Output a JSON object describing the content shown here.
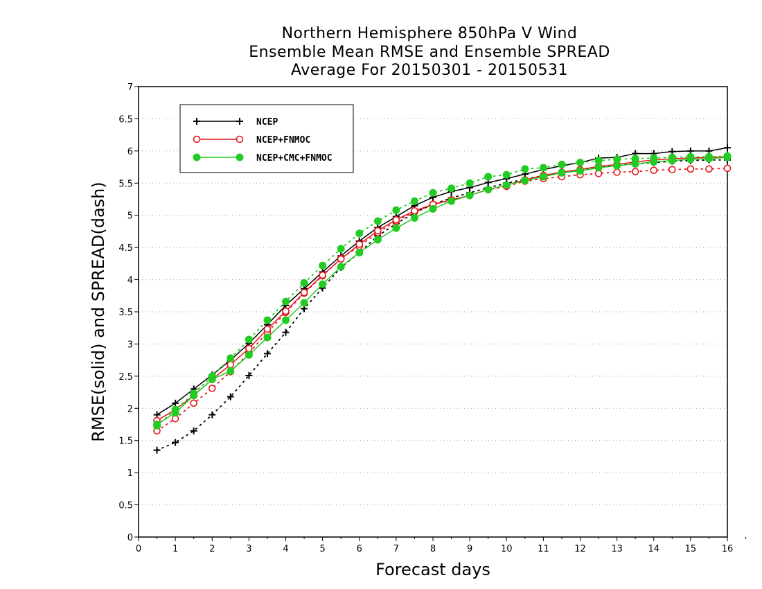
{
  "chart_data": {
    "type": "line",
    "title": [
      "Northern Hemisphere 850hPa V Wind",
      "Ensemble Mean RMSE and Ensemble SPREAD",
      "Average For 20150301 - 20150531"
    ],
    "xlabel": "Forecast days",
    "ylabel": "RMSE(solid) and SPREAD(dash)",
    "xlim": [
      0,
      16
    ],
    "ylim": [
      0,
      7
    ],
    "x_ticks": [
      "0",
      "1",
      "2",
      "3",
      "4",
      "5",
      "6",
      "7",
      "8",
      "9",
      "10",
      "11",
      "12",
      "13",
      "14",
      "15",
      "16"
    ],
    "y_ticks": [
      "0",
      "0.5",
      "1",
      "1.5",
      "2",
      "2.5",
      "3",
      "3.5",
      "4",
      "4.5",
      "5",
      "5.5",
      "6",
      "6.5",
      "7"
    ],
    "grid": "horizontal dotted",
    "legend_position": "top-left",
    "x": [
      0.5,
      1,
      1.5,
      2,
      2.5,
      3,
      3.5,
      4,
      4.5,
      5,
      5.5,
      6,
      6.5,
      7,
      7.5,
      8,
      8.5,
      9,
      9.5,
      10,
      10.5,
      11,
      11.5,
      12,
      12.5,
      13,
      13.5,
      14,
      14.5,
      15,
      15.5,
      16
    ],
    "series": [
      {
        "name": "NCEP",
        "color": "#000000",
        "marker": "plus",
        "rmse": [
          1.9,
          2.08,
          2.3,
          2.52,
          2.75,
          3.01,
          3.3,
          3.6,
          3.86,
          4.12,
          4.37,
          4.6,
          4.81,
          4.98,
          5.15,
          5.28,
          5.37,
          5.43,
          5.51,
          5.57,
          5.64,
          5.71,
          5.77,
          5.82,
          5.89,
          5.9,
          5.96,
          5.96,
          5.99,
          6.0,
          6.0,
          6.05
        ],
        "spread": [
          1.35,
          1.47,
          1.65,
          1.9,
          2.18,
          2.51,
          2.85,
          3.18,
          3.55,
          3.87,
          4.19,
          4.42,
          4.68,
          4.87,
          5.04,
          5.17,
          5.27,
          5.35,
          5.43,
          5.5,
          5.56,
          5.62,
          5.67,
          5.71,
          5.75,
          5.78,
          5.8,
          5.82,
          5.84,
          5.85,
          5.86,
          5.86
        ]
      },
      {
        "name": "NCEP+FNMOC",
        "color": "#e8151c",
        "marker": "open-circle",
        "rmse": [
          1.81,
          1.98,
          2.2,
          2.45,
          2.68,
          2.93,
          3.23,
          3.51,
          3.8,
          4.07,
          4.32,
          4.55,
          4.76,
          4.93,
          5.07,
          5.17,
          5.24,
          5.31,
          5.4,
          5.47,
          5.55,
          5.62,
          5.67,
          5.71,
          5.76,
          5.79,
          5.83,
          5.86,
          5.88,
          5.89,
          5.9,
          5.91
        ],
        "spread": [
          1.65,
          1.84,
          2.08,
          2.31,
          2.57,
          2.86,
          3.18,
          3.49,
          3.79,
          4.06,
          4.33,
          4.52,
          4.73,
          4.91,
          5.05,
          5.17,
          5.23,
          5.31,
          5.4,
          5.45,
          5.53,
          5.57,
          5.6,
          5.63,
          5.65,
          5.67,
          5.68,
          5.7,
          5.71,
          5.72,
          5.72,
          5.73
        ]
      },
      {
        "name": "NCEP+CMC+FNMOC",
        "color": "#22cc22",
        "marker": "filled-circle",
        "rmse": [
          1.75,
          1.93,
          2.2,
          2.45,
          2.58,
          2.83,
          3.1,
          3.37,
          3.64,
          3.93,
          4.2,
          4.42,
          4.62,
          4.8,
          4.96,
          5.1,
          5.22,
          5.31,
          5.4,
          5.47,
          5.54,
          5.6,
          5.66,
          5.69,
          5.74,
          5.77,
          5.8,
          5.83,
          5.85,
          5.87,
          5.88,
          5.9
        ],
        "spread": [
          1.73,
          1.98,
          2.23,
          2.5,
          2.78,
          3.07,
          3.37,
          3.66,
          3.95,
          4.22,
          4.48,
          4.72,
          4.91,
          5.08,
          5.22,
          5.35,
          5.42,
          5.5,
          5.6,
          5.63,
          5.72,
          5.74,
          5.79,
          5.82,
          5.85,
          5.87,
          5.88,
          5.89,
          5.9,
          5.91,
          5.91,
          5.92
        ]
      }
    ]
  }
}
